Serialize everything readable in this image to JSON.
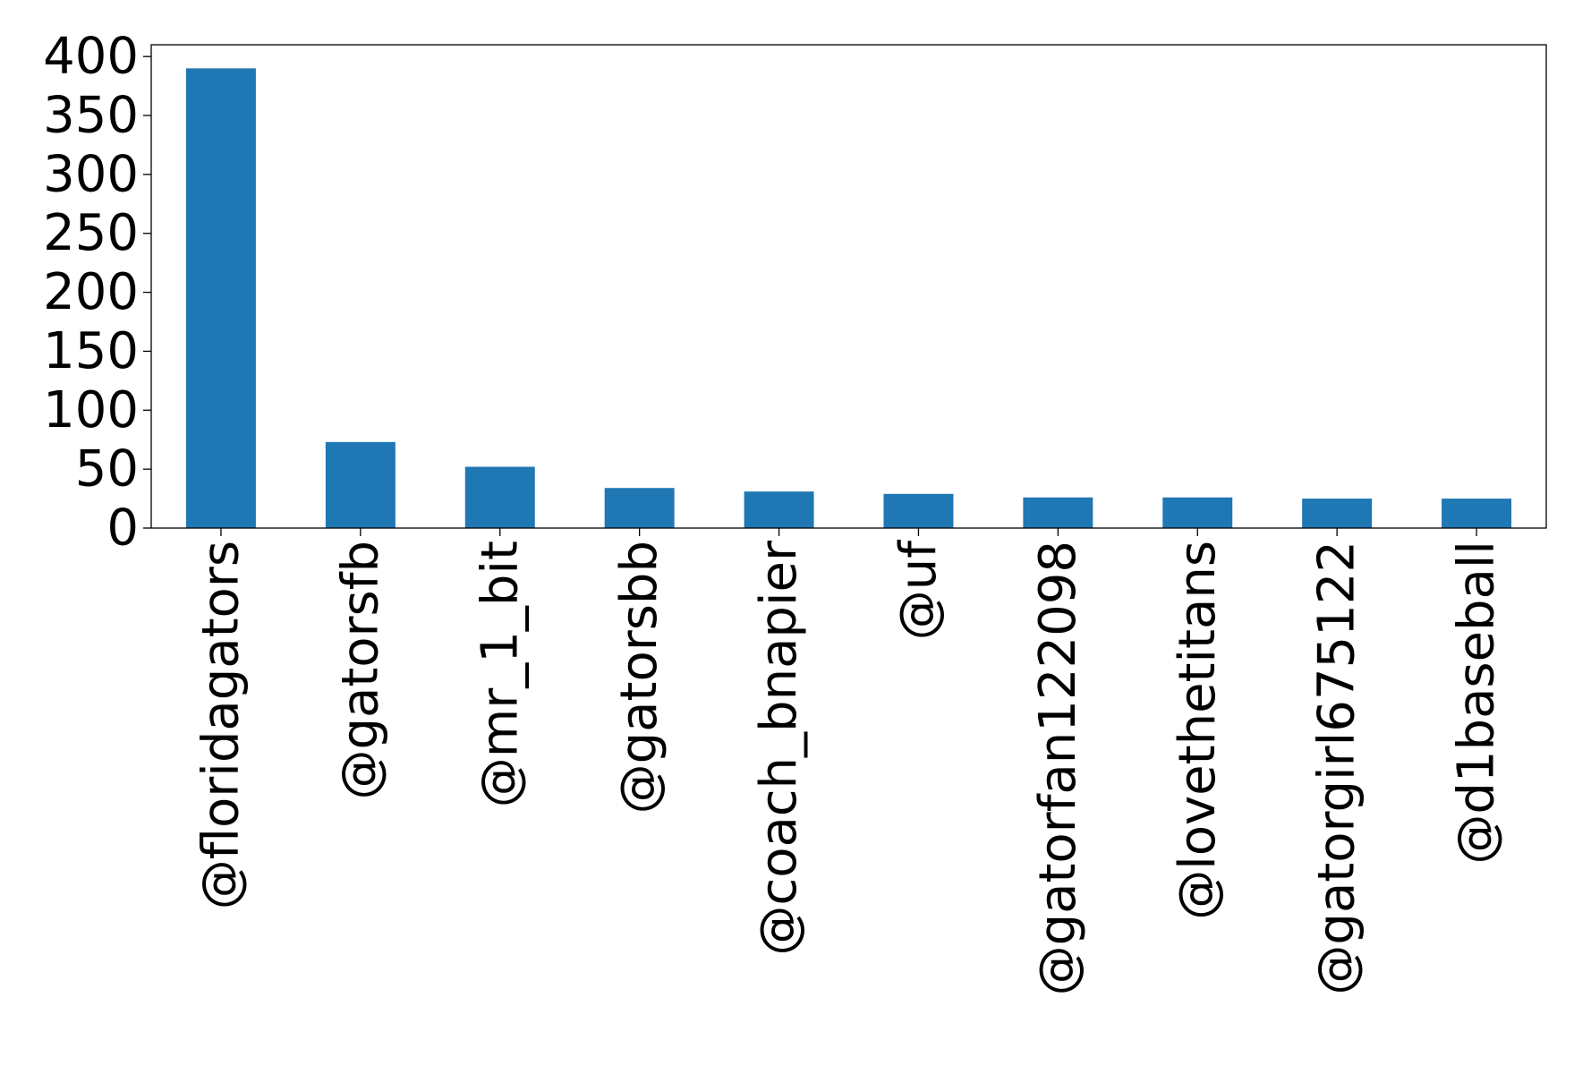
{
  "chart_data": {
    "type": "bar",
    "title": "",
    "xlabel": "",
    "ylabel": "",
    "categories": [
      "@floridagators",
      "@gatorsfb",
      "@mr_1_bit",
      "@gatorsbb",
      "@coach_bnapier",
      "@uf",
      "@gatorfan122098",
      "@lovethetitans",
      "@gatorgirl675122",
      "@d1baseball"
    ],
    "values": [
      390,
      73,
      52,
      34,
      31,
      29,
      26,
      26,
      25,
      25
    ],
    "ylim": [
      0,
      410
    ],
    "yticks": [
      0,
      50,
      100,
      150,
      200,
      250,
      300,
      350,
      400
    ],
    "grid": false,
    "bar_color": "#1f77b4"
  }
}
